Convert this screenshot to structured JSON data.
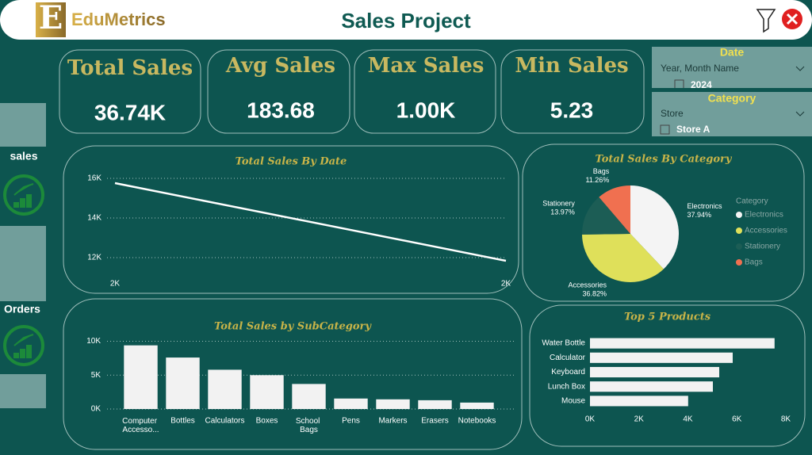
{
  "header": {
    "brand": "EduMetrics",
    "title": "Sales Project"
  },
  "kpis": [
    {
      "label": "Total Sales",
      "value": "36.74K"
    },
    {
      "label": "Avg Sales",
      "value": "183.68"
    },
    {
      "label": "Max Sales",
      "value": "1.00K"
    },
    {
      "label": "Min Sales",
      "value": "5.23"
    }
  ],
  "nav": [
    "sales",
    "Orders"
  ],
  "slicers": [
    {
      "title": "Date",
      "field": "Year, Month Name",
      "item": "2024"
    },
    {
      "title": "Category",
      "field": "Store",
      "item": "Store A"
    }
  ],
  "chart_data": [
    {
      "type": "line",
      "title": "Total Sales By Date",
      "categories": [
        "2K",
        "2K"
      ],
      "values": [
        15760,
        11840
      ],
      "color": "#ffffff",
      "ylim": [
        11200,
        16400
      ],
      "yticks": [
        {
          "value": 12000,
          "label": "12K"
        },
        {
          "value": 14000,
          "label": "14K"
        },
        {
          "value": 16000,
          "label": "16K"
        }
      ],
      "grid": true
    },
    {
      "type": "pie",
      "title": "Total Sales By Category",
      "legend_title": "Category",
      "categories": [
        "Electronics",
        "Accessories",
        "Stationery",
        "Bags"
      ],
      "values": [
        37.94,
        36.82,
        13.97,
        11.26
      ],
      "value_labels": [
        "37.94%",
        "36.82%",
        "13.97%",
        "11.26%"
      ],
      "colors": [
        "#f4f4f4",
        "#dfe05a",
        "#1c5d55",
        "#f07050"
      ],
      "legend": "right"
    },
    {
      "type": "bar",
      "title": "Total Sales by SubCategory",
      "categories": [
        "Computer Accesso...",
        "Bottles",
        "Calculators",
        "Boxes",
        "School Bags",
        "Pens",
        "Markers",
        "Erasers",
        "Notebooks"
      ],
      "values": [
        9400,
        7600,
        5800,
        5000,
        3700,
        1550,
        1430,
        1300,
        950
      ],
      "color": "#f2f2f2",
      "ylim": [
        0,
        11000
      ],
      "yticks": [
        {
          "value": 0,
          "label": "0K"
        },
        {
          "value": 5000,
          "label": "5K"
        },
        {
          "value": 10000,
          "label": "10K"
        }
      ],
      "grid": true
    },
    {
      "type": "barh",
      "title": "Top 5 Products",
      "categories": [
        "Water Bottle",
        "Calculator",
        "Keyboard",
        "Lunch Box",
        "Mouse"
      ],
      "values": [
        7540,
        5830,
        5280,
        5020,
        4010
      ],
      "color": "#f2f2f2",
      "xlim": [
        0,
        8000
      ],
      "xticks": [
        {
          "value": 0,
          "label": "0K"
        },
        {
          "value": 2000,
          "label": "2K"
        },
        {
          "value": 4000,
          "label": "4K"
        },
        {
          "value": 6000,
          "label": "6K"
        },
        {
          "value": 8000,
          "label": "8K"
        }
      ],
      "grid": false
    }
  ]
}
